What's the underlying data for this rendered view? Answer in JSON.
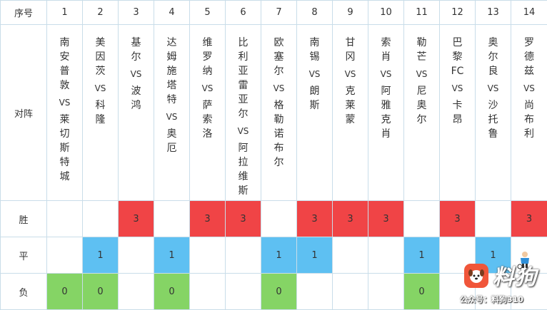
{
  "header": {
    "index_label": "序号",
    "numbers": [
      "1",
      "2",
      "3",
      "4",
      "5",
      "6",
      "7",
      "8",
      "9",
      "10",
      "11",
      "12",
      "13",
      "14"
    ]
  },
  "matchup": {
    "label": "对阵",
    "vs": "VS",
    "matches": [
      {
        "home": [
          "南",
          "安",
          "普",
          "敦"
        ],
        "away": [
          "莱",
          "切",
          "斯",
          "特",
          "城"
        ]
      },
      {
        "home": [
          "美",
          "因",
          "茨"
        ],
        "away": [
          "科",
          "隆"
        ]
      },
      {
        "home": [
          "基",
          "尔"
        ],
        "away": [
          "波",
          "鸿"
        ]
      },
      {
        "home": [
          "达",
          "姆",
          "施",
          "塔",
          "特"
        ],
        "away": [
          "奥",
          "厄"
        ]
      },
      {
        "home": [
          "维",
          "罗",
          "纳"
        ],
        "away": [
          "萨",
          "索",
          "洛"
        ]
      },
      {
        "home": [
          "比",
          "利",
          "亚",
          "雷",
          "亚",
          "尔"
        ],
        "away": [
          "阿",
          "拉",
          "维",
          "斯"
        ]
      },
      {
        "home": [
          "欧",
          "塞",
          "尔"
        ],
        "away": [
          "格",
          "勒",
          "诺",
          "布",
          "尔"
        ]
      },
      {
        "home": [
          "南",
          "锡"
        ],
        "away": [
          "朗",
          "斯"
        ]
      },
      {
        "home": [
          "甘",
          "冈"
        ],
        "away": [
          "克",
          "莱",
          "蒙"
        ]
      },
      {
        "home": [
          "索",
          "肖"
        ],
        "away": [
          "阿",
          "雅",
          "克",
          "肖"
        ]
      },
      {
        "home": [
          "勒",
          "芒"
        ],
        "away": [
          "尼",
          "奥",
          "尔"
        ]
      },
      {
        "home": [
          "巴",
          "黎",
          "FC"
        ],
        "away": [
          "卡",
          "昂"
        ]
      },
      {
        "home": [
          "奥",
          "尔",
          "良"
        ],
        "away": [
          "沙",
          "托",
          "鲁"
        ]
      },
      {
        "home": [
          "罗",
          "德",
          "兹"
        ],
        "away": [
          "尚",
          "布",
          "利"
        ]
      }
    ]
  },
  "results": {
    "win": {
      "label": "胜",
      "mark": "3",
      "color": "#f04446",
      "selected": [
        false,
        false,
        true,
        false,
        true,
        true,
        false,
        true,
        true,
        true,
        false,
        true,
        false,
        true
      ]
    },
    "draw": {
      "label": "平",
      "mark": "1",
      "color": "#5ec0f2",
      "selected": [
        false,
        true,
        false,
        true,
        false,
        false,
        true,
        true,
        false,
        false,
        true,
        false,
        true,
        false
      ]
    },
    "loss": {
      "label": "负",
      "mark": "0",
      "color": "#85d465",
      "selected": [
        true,
        true,
        false,
        true,
        false,
        false,
        true,
        false,
        false,
        false,
        true,
        false,
        false,
        false
      ]
    }
  },
  "watermark": {
    "brand": "料狗",
    "account": "公众号：料狗310",
    "logo_icon": "dog-logo-icon",
    "mascot_icon": "football-player-icon"
  }
}
